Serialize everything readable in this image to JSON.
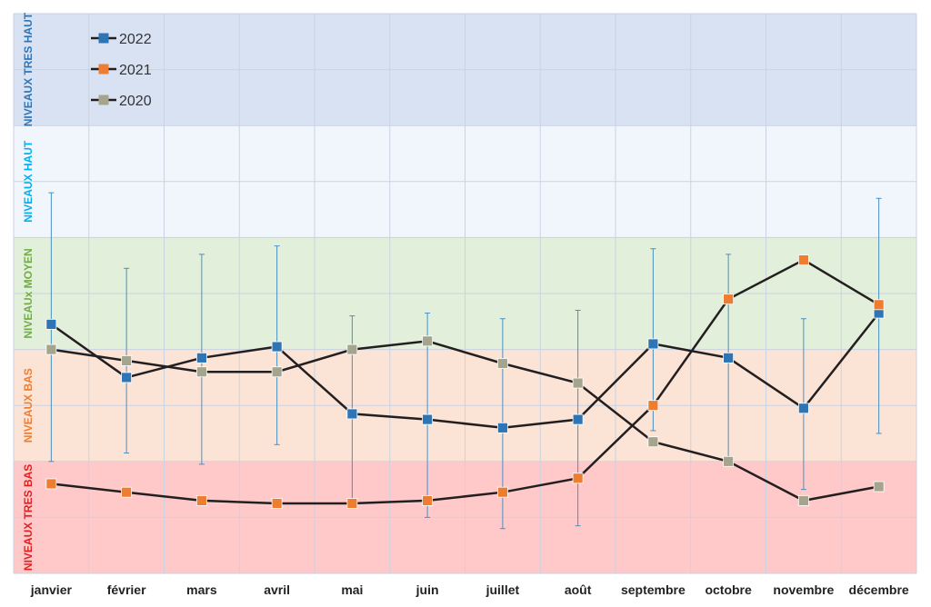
{
  "chart_data": {
    "type": "line",
    "title": "",
    "xlabel": "",
    "ylabel": "",
    "ylim": [
      0,
      10
    ],
    "grid": true,
    "legend_placement": "top-left",
    "categories": [
      "janvier",
      "février",
      "mars",
      "avril",
      "mai",
      "juin",
      "juillet",
      "août",
      "septembre",
      "octobre",
      "novembre",
      "décembre"
    ],
    "bands": [
      {
        "label": "NIVEAUX TRES BAS",
        "range": [
          0,
          2
        ],
        "fill": "#ffc9c9",
        "text_color": "#e02020"
      },
      {
        "label": "NIVEAUX BAS",
        "range": [
          2,
          4
        ],
        "fill": "#fbe3d6",
        "text_color": "#ed7d31"
      },
      {
        "label": "NIVEAUx MOYEN",
        "range": [
          4,
          6
        ],
        "fill": "#e2efda",
        "text_color": "#70ad47"
      },
      {
        "label": "NIVEAUX HAUT",
        "range": [
          6,
          8
        ],
        "fill": "#f0f6fc",
        "text_color": "#00b0f0"
      },
      {
        "label": "NIVEAUX TRES HAUT",
        "range": [
          8,
          10
        ],
        "fill": "#d9e2f3",
        "text_color": "#2e75b6"
      }
    ],
    "series": [
      {
        "name": "2022",
        "marker_color": "#2e75b6",
        "line_color": "#231f20",
        "values": [
          4.45,
          3.5,
          3.85,
          4.05,
          2.85,
          2.75,
          2.6,
          2.75,
          4.1,
          3.85,
          2.95,
          4.65
        ],
        "error_low": [
          2.0,
          2.15,
          1.95,
          2.3,
          1.25,
          1.0,
          0.8,
          0.85,
          2.55,
          1.95,
          1.5,
          2.5
        ],
        "error_high": [
          6.8,
          5.45,
          5.7,
          5.85,
          4.6,
          4.65,
          4.55,
          4.7,
          5.8,
          5.7,
          4.55,
          6.7
        ]
      },
      {
        "name": "2021",
        "marker_color": "#ed7d31",
        "line_color": "#231f20",
        "values": [
          1.6,
          1.45,
          1.3,
          1.25,
          1.25,
          1.3,
          1.45,
          1.7,
          3.0,
          4.9,
          5.6,
          4.8
        ]
      },
      {
        "name": "2020",
        "marker_color": "#a5a58d",
        "line_color": "#231f20",
        "values": [
          4.0,
          3.8,
          3.6,
          3.6,
          4.0,
          4.15,
          3.75,
          3.4,
          2.35,
          2.0,
          1.3,
          1.55
        ]
      }
    ]
  }
}
